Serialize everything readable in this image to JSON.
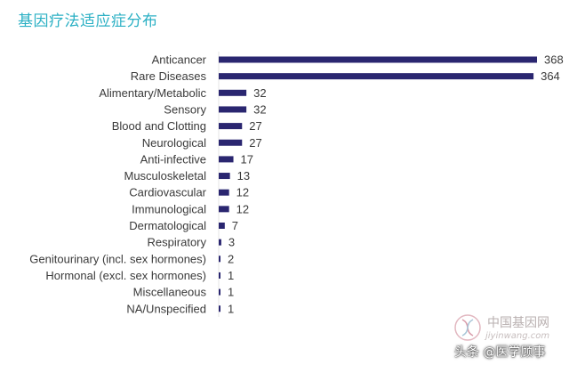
{
  "chart_data": {
    "type": "bar",
    "orientation": "horizontal",
    "title": "基因疗法适应症分布",
    "categories": [
      "Anticancer",
      "Rare Diseases",
      "Alimentary/Metabolic",
      "Sensory",
      "Blood and Clotting",
      "Neurological",
      "Anti-infective",
      "Musculoskeletal",
      "Cardiovascular",
      "Immunological",
      "Dermatological",
      "Respiratory",
      "Genitourinary (incl. sex hormones)",
      "Hormonal (excl. sex hormones)",
      "Miscellaneous",
      "NA/Unspecified"
    ],
    "values": [
      368,
      364,
      32,
      32,
      27,
      27,
      17,
      13,
      12,
      12,
      7,
      3,
      2,
      1,
      1,
      1
    ],
    "xlim": [
      0,
      368
    ],
    "grid": false,
    "legend": "none",
    "bar_color": "#2a2670"
  },
  "watermark": {
    "site": "中国基因网",
    "url": "jiyinwang.com",
    "author": "头条 @医学顾事"
  },
  "colors": {
    "title": "#2bb0c4",
    "bar": "#2a2670",
    "text": "#3a3a3a"
  }
}
